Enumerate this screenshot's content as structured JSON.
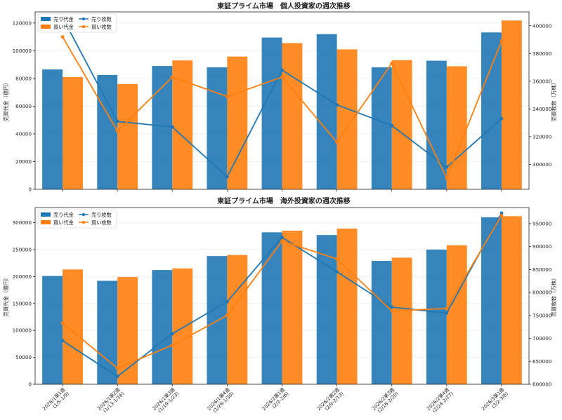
{
  "colors": {
    "sell": "#1f77b4",
    "buy": "#ff7f0e"
  },
  "chart_data": [
    {
      "type": "bar+line",
      "title": "東証プライム市場　個人投資家の週次推移",
      "ylabel": "売買代金（億円）",
      "y2label": "売買枚数（万株）",
      "ylim": [
        0,
        128000
      ],
      "yticks": [
        0,
        20000,
        40000,
        60000,
        80000,
        100000,
        120000
      ],
      "y2lim": [
        282000,
        410000
      ],
      "y2ticks": [
        300000,
        320000,
        340000,
        360000,
        380000,
        400000
      ],
      "legend": {
        "sell_amount": "売り代金",
        "buy_amount": "買い代金",
        "sell_volume": "売り枚数",
        "buy_volume": "買い枚数"
      },
      "series": [
        {
          "name": "売り代金",
          "kind": "bar",
          "values": [
            86500,
            82500,
            89000,
            88000,
            109500,
            112000,
            88000,
            92800,
            113200
          ]
        },
        {
          "name": "買い代金",
          "kind": "bar",
          "values": [
            81000,
            76000,
            93000,
            95800,
            105500,
            101000,
            93200,
            88800,
            121800
          ]
        },
        {
          "name": "売り枚数",
          "kind": "line",
          "values": [
            406000,
            331000,
            327000,
            291000,
            368000,
            343000,
            328000,
            298000,
            333000
          ]
        },
        {
          "name": "買い枚数",
          "kind": "line",
          "values": [
            392000,
            324000,
            363000,
            349000,
            363000,
            316000,
            373000,
            290000,
            389000
          ]
        }
      ]
    },
    {
      "type": "bar+line",
      "title": "東証プライム市場　海外投資家の週次推移",
      "ylabel": "売買代金（億円）",
      "y2label": "売買枚数（万株）",
      "ylim": [
        0,
        328000
      ],
      "yticks": [
        0,
        50000,
        100000,
        150000,
        200000,
        250000,
        300000
      ],
      "y2lim": [
        600000,
        985000
      ],
      "y2ticks": [
        600000,
        650000,
        700000,
        750000,
        800000,
        850000,
        900000,
        950000
      ],
      "legend": {
        "sell_amount": "売り代金",
        "buy_amount": "買い代金",
        "sell_volume": "売り枚数",
        "buy_volume": "買い枚数"
      },
      "categories": [
        [
          "2026/1第1週",
          "(1/5-1/9)"
        ],
        [
          "2026/1第2週",
          "(1/13-1/16)"
        ],
        [
          "2026/1第3週",
          "(1/19-1/23)"
        ],
        [
          "2026/1第4週",
          "(1/26-1/30)"
        ],
        [
          "2026/2第1週",
          "(2/2-2/6)"
        ],
        [
          "2026/2第2週",
          "(2/9-2/13)"
        ],
        [
          "2026/2第3週",
          "(2/16-2/20)"
        ],
        [
          "2026/2第4週",
          "(2/24-2/27)"
        ],
        [
          "2026/3第1週",
          "(3/2-3/6)"
        ]
      ],
      "series": [
        {
          "name": "売り代金",
          "kind": "bar",
          "values": [
            201000,
            192000,
            212000,
            238000,
            282000,
            277000,
            229000,
            250000,
            310000
          ]
        },
        {
          "name": "買い代金",
          "kind": "bar",
          "values": [
            213000,
            199000,
            215000,
            240000,
            285000,
            289000,
            235000,
            258000,
            312000
          ]
        },
        {
          "name": "売り枚数",
          "kind": "line",
          "values": [
            695000,
            617000,
            710000,
            780000,
            920000,
            845000,
            768000,
            755000,
            973000
          ]
        },
        {
          "name": "買い枚数",
          "kind": "line",
          "values": [
            733000,
            635000,
            685000,
            750000,
            912000,
            873000,
            760000,
            765000,
            968000
          ]
        }
      ]
    }
  ]
}
